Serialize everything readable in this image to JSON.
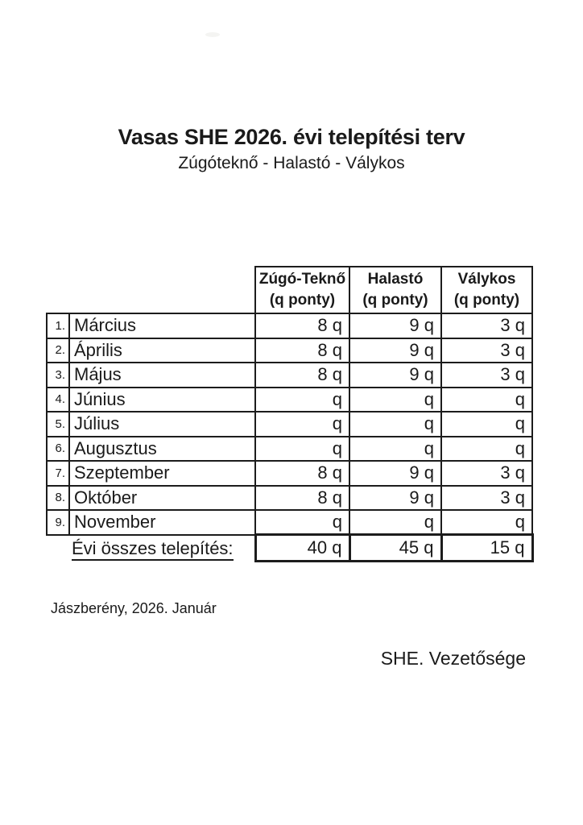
{
  "document": {
    "title": "Vasas SHE 2026. évi telepítési terv",
    "subtitle": "Zúgóteknő - Halastó - Válykos",
    "date_line": "Jászberény, 2026. Január",
    "signature": "SHE. Vezetősége",
    "colors": {
      "text": "#1a1a1a",
      "border": "#1c1c1c",
      "background": "#ffffff"
    }
  },
  "table": {
    "headers": [
      {
        "name": "Zúgó-Teknő",
        "unit": "(q ponty)"
      },
      {
        "name": "Halastó",
        "unit": "(q ponty)"
      },
      {
        "name": "Válykos",
        "unit": "(q ponty)"
      }
    ],
    "rows": [
      {
        "num": "1.",
        "month": "Március",
        "v1": "8 q",
        "v2": "9 q",
        "v3": "3 q"
      },
      {
        "num": "2.",
        "month": "Április",
        "v1": "8 q",
        "v2": "9 q",
        "v3": "3 q"
      },
      {
        "num": "3.",
        "month": "Május",
        "v1": "8 q",
        "v2": "9 q",
        "v3": "3 q"
      },
      {
        "num": "4.",
        "month": "Június",
        "v1": "q",
        "v2": "q",
        "v3": "q"
      },
      {
        "num": "5.",
        "month": "Július",
        "v1": "q",
        "v2": "q",
        "v3": "q"
      },
      {
        "num": "6.",
        "month": "Augusztus",
        "v1": "q",
        "v2": "q",
        "v3": "q"
      },
      {
        "num": "7.",
        "month": "Szeptember",
        "v1": "8 q",
        "v2": "9 q",
        "v3": "3 q"
      },
      {
        "num": "8.",
        "month": "Október",
        "v1": "8 q",
        "v2": "9 q",
        "v3": "3 q"
      },
      {
        "num": "9.",
        "month": "November",
        "v1": "q",
        "v2": "q",
        "v3": "q"
      }
    ],
    "total": {
      "label": "Évi összes telepítés:",
      "v1": "40 q",
      "v2": "45 q",
      "v3": "15 q"
    }
  }
}
